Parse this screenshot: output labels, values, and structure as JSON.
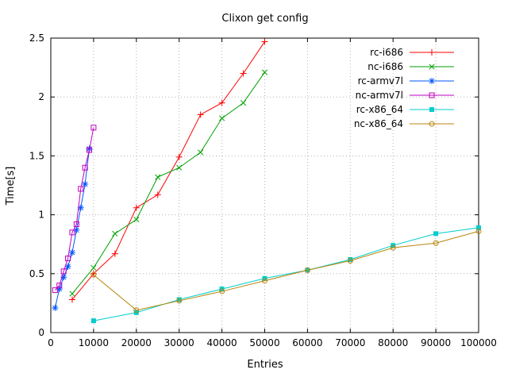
{
  "chart_data": {
    "type": "line",
    "title": "Clixon get config",
    "xlabel": "Entries",
    "ylabel": "Time[s]",
    "xlim": [
      0,
      100000
    ],
    "ylim": [
      0,
      2.5
    ],
    "xticks": [
      0,
      10000,
      20000,
      30000,
      40000,
      50000,
      60000,
      70000,
      80000,
      90000,
      100000
    ],
    "xtick_labels": [
      "0",
      "10000",
      "20000",
      "30000",
      "40000",
      "50000",
      "60000",
      "70000",
      "80000",
      "90000",
      "100000"
    ],
    "yticks": [
      0,
      0.5,
      1,
      1.5,
      2,
      2.5
    ],
    "ytick_labels": [
      "0",
      "0.5",
      "1",
      "1.5",
      "2",
      "2.5"
    ],
    "grid": true,
    "grid_color": "#b4b4b4",
    "border_color": "#000000",
    "text_color": "#000000",
    "legend_position": "top-right-inside",
    "series": [
      {
        "name": "rc-i686",
        "color": "#ff0000",
        "marker": "plus",
        "x": [
          5000,
          10000,
          15000,
          20000,
          25000,
          30000,
          35000,
          40000,
          45000,
          50000
        ],
        "y": [
          0.28,
          0.5,
          0.67,
          1.06,
          1.17,
          1.49,
          1.85,
          1.95,
          2.2,
          2.47
        ]
      },
      {
        "name": "nc-i686",
        "color": "#00a000",
        "marker": "cross",
        "x": [
          5000,
          10000,
          15000,
          20000,
          25000,
          30000,
          35000,
          40000,
          45000,
          50000
        ],
        "y": [
          0.33,
          0.55,
          0.84,
          0.96,
          1.32,
          1.4,
          1.53,
          1.82,
          1.95,
          2.21
        ]
      },
      {
        "name": "rc-armv7l",
        "color": "#0055ff",
        "marker": "asterisk",
        "x": [
          1000,
          2000,
          3000,
          4000,
          5000,
          6000,
          7000,
          8000,
          9000
        ],
        "y": [
          0.21,
          0.37,
          0.47,
          0.56,
          0.68,
          0.87,
          1.06,
          1.26,
          1.56
        ]
      },
      {
        "name": "nc-armv7l",
        "color": "#c000c0",
        "marker": "square-open",
        "x": [
          1000,
          2000,
          3000,
          4000,
          5000,
          6000,
          7000,
          8000,
          9000,
          10000
        ],
        "y": [
          0.36,
          0.4,
          0.52,
          0.63,
          0.85,
          0.92,
          1.22,
          1.4,
          1.55,
          1.74
        ]
      },
      {
        "name": "rc-x86_64",
        "color": "#00cccc",
        "marker": "square-filled",
        "x": [
          10000,
          20000,
          30000,
          40000,
          50000,
          60000,
          70000,
          80000,
          90000,
          100000
        ],
        "y": [
          0.1,
          0.17,
          0.28,
          0.37,
          0.46,
          0.53,
          0.62,
          0.74,
          0.84,
          0.89
        ]
      },
      {
        "name": "nc-x86_64",
        "color": "#b8860b",
        "marker": "circle-open",
        "x": [
          10000,
          20000,
          30000,
          40000,
          50000,
          60000,
          70000,
          80000,
          90000,
          100000
        ],
        "y": [
          0.49,
          0.19,
          0.27,
          0.35,
          0.44,
          0.53,
          0.61,
          0.72,
          0.76,
          0.86
        ]
      }
    ]
  }
}
